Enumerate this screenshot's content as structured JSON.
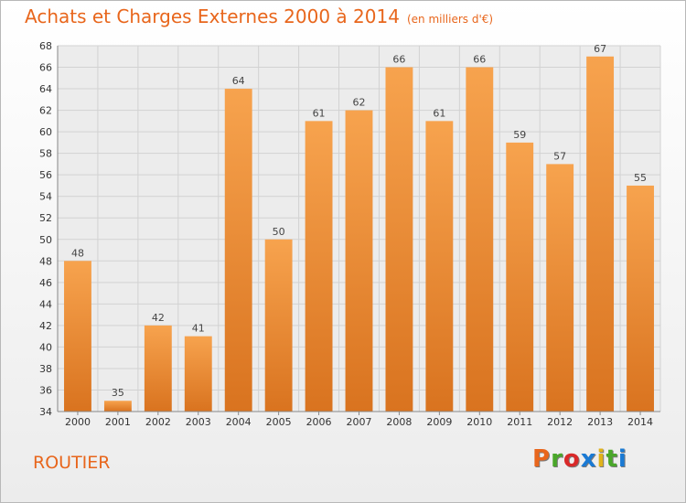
{
  "header": {
    "title": "Achats et Charges Externes 2000 à 2014",
    "unit": "(en milliers d'€)"
  },
  "footer": {
    "commune": "ROUTIER",
    "brand": "Proxiti"
  },
  "colors": {
    "title": "#e8661c",
    "bar_light": "#f7a34e",
    "bar_dark": "#d9731f",
    "brand_letters": [
      "#e8661c",
      "#4aa72a",
      "#d92a2a",
      "#1a7ad4",
      "#e0b21a",
      "#4aa72a",
      "#1a7ad4"
    ]
  },
  "chart_data": {
    "type": "bar",
    "title": "Achats et Charges Externes 2000 à 2014",
    "subtitle": "(en milliers d'€)",
    "categories": [
      "2000",
      "2001",
      "2002",
      "2003",
      "2004",
      "2005",
      "2006",
      "2007",
      "2008",
      "2009",
      "2010",
      "2011",
      "2012",
      "2013",
      "2014"
    ],
    "values": [
      48,
      35,
      42,
      41,
      64,
      50,
      61,
      62,
      66,
      61,
      66,
      59,
      57,
      67,
      55
    ],
    "ylim": [
      34,
      68
    ],
    "yticks": [
      34,
      36,
      38,
      40,
      42,
      44,
      46,
      48,
      50,
      52,
      54,
      56,
      58,
      60,
      62,
      64,
      66,
      68
    ],
    "grid": true,
    "legend": "none"
  }
}
